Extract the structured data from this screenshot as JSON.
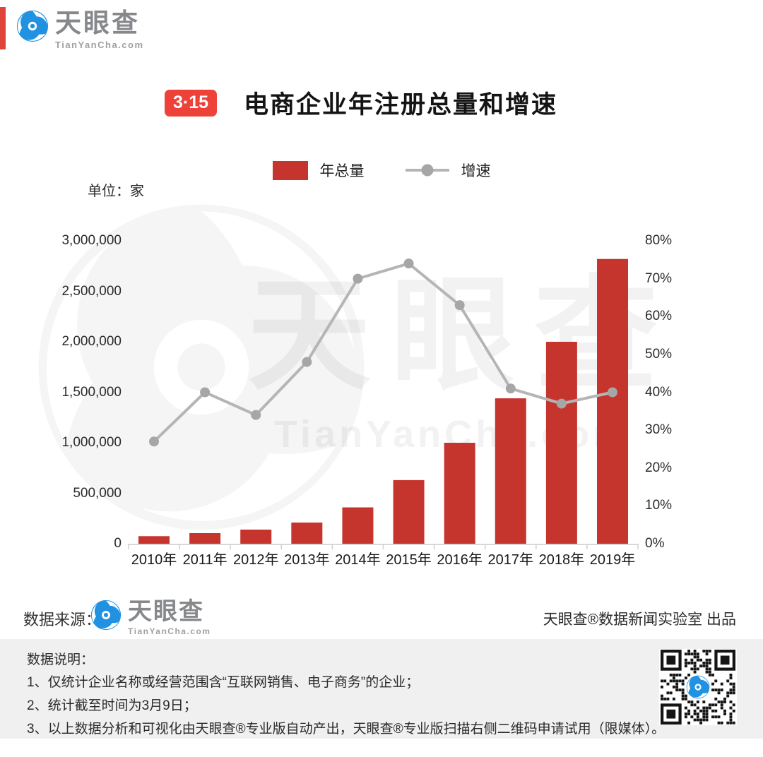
{
  "header": {
    "accent_bar_color": "#e0433a",
    "logo": {
      "name": "天眼查",
      "domain": "TianYanCha.com"
    },
    "badge": {
      "text": "3·15",
      "color": "#ee4238"
    },
    "title": "电商企业年注册总量和增速"
  },
  "unit_label": "单位：家",
  "chart_data": {
    "type": "bar",
    "title": "电商企业年注册总量和增速",
    "legend_position": "top",
    "grid": false,
    "categories": [
      "2010年",
      "2011年",
      "2012年",
      "2013年",
      "2014年",
      "2015年",
      "2016年",
      "2017年",
      "2018年",
      "2019年"
    ],
    "series": [
      {
        "name": "年总量",
        "type": "bar",
        "axis": "left",
        "unit": "家",
        "color": "#c6342e",
        "values": [
          75000,
          105000,
          140000,
          210000,
          360000,
          630000,
          1000000,
          1440000,
          2000000,
          2820000
        ]
      },
      {
        "name": "增速",
        "type": "line",
        "axis": "right",
        "unit": "%",
        "color": "#b5b5b5",
        "marker_color": "#a6a6a6",
        "values": [
          27,
          40,
          34,
          48,
          70,
          74,
          63,
          41,
          37,
          40
        ]
      }
    ],
    "left_axis": {
      "max": 3000000,
      "tick_step": 500000,
      "tick_labels": [
        "0",
        "500,000",
        "1,000,000",
        "1,500,000",
        "2,000,000",
        "2,500,000",
        "3,000,000"
      ]
    },
    "right_axis": {
      "max": 80,
      "tick_step": 10,
      "tick_labels": [
        "0%",
        "10%",
        "20%",
        "30%",
        "40%",
        "50%",
        "60%",
        "70%",
        "80%"
      ]
    }
  },
  "watermark": {
    "text": "天眼查",
    "subtext": "TianYanCha.com"
  },
  "source_row": {
    "label": "数据来源：",
    "logo": {
      "name": "天眼查",
      "domain": "TianYanCha.com"
    },
    "credit": "天眼查®数据新闻实验室 出品"
  },
  "notes": {
    "title": "数据说明：",
    "items": [
      "1、仅统计企业名称或经营范围含“互联网销售、电子商务”的企业；",
      "2、统计截至时间为3月9日；",
      "3、以上数据分析和可视化由天眼查®专业版自动产出，天眼查®专业版扫描右侧二维码申请试用（限媒体）。"
    ]
  }
}
